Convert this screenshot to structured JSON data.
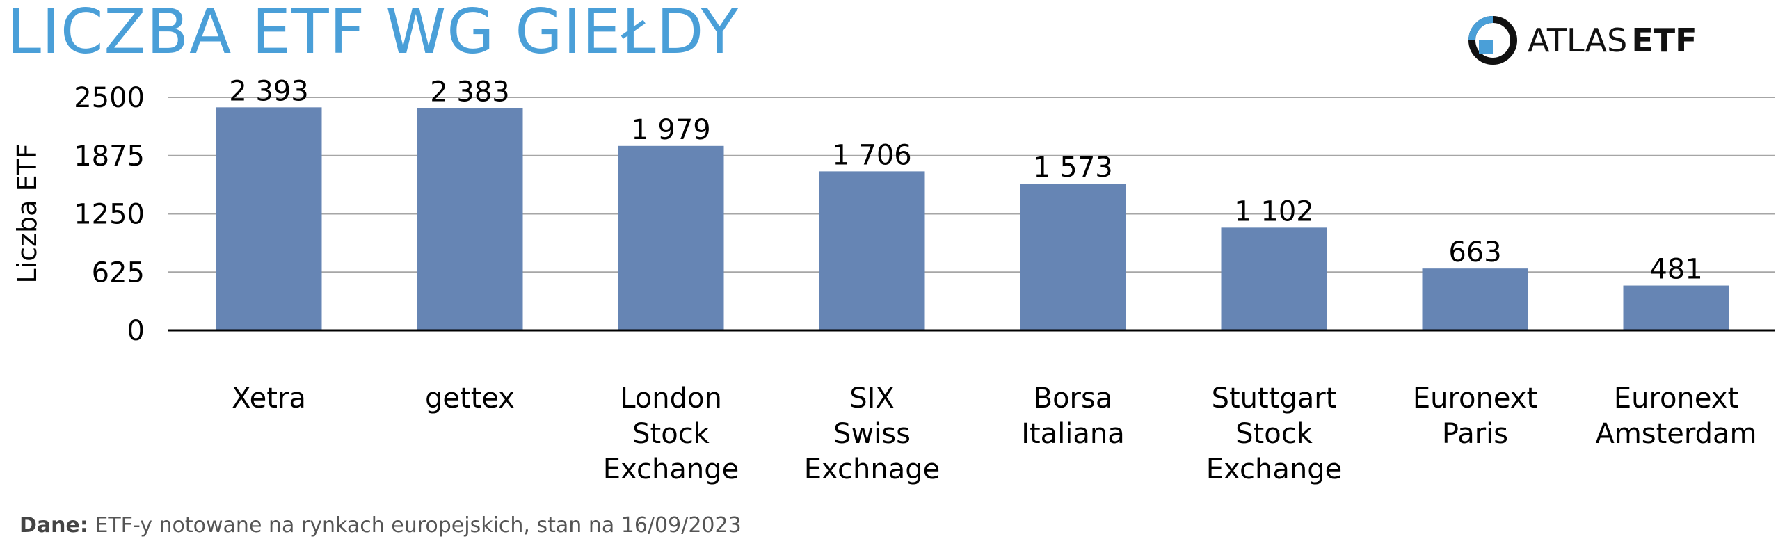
{
  "title": "LICZBA ETF WG GIEŁDY",
  "logo": {
    "word1": "ATLAS",
    "word2": "ETF",
    "icon": "atlas-etf-logo-icon",
    "colors": {
      "ring": "#4a9fd8",
      "text": "#111111"
    }
  },
  "source": {
    "label": "Dane:",
    "text": "ETF-y notowane na rynkach europejskich, stan na 16/09/2023"
  },
  "colors": {
    "title": "#4a9fd8",
    "bar": "#6685b4",
    "grid": "#a6a6a6",
    "axis": "#000000"
  },
  "chart_data": {
    "type": "bar",
    "title": "",
    "xlabel": "",
    "ylabel": "Liczba ETF",
    "ylim": [
      0,
      2500
    ],
    "yticks": [
      {
        "value": 0,
        "label": "0"
      },
      {
        "value": 625,
        "label": "625"
      },
      {
        "value": 1250,
        "label": "1250"
      },
      {
        "value": 1875,
        "label": "1875"
      },
      {
        "value": 2500,
        "label": "2500"
      }
    ],
    "grid": true,
    "legend": "none",
    "categories": [
      [
        "Xetra"
      ],
      [
        "gettex"
      ],
      [
        "London",
        "Stock",
        "Exchange"
      ],
      [
        "SIX",
        "Swiss",
        "Exchnage"
      ],
      [
        "Borsa",
        "Italiana"
      ],
      [
        "Stuttgart",
        "Stock",
        "Exchange"
      ],
      [
        "Euronext",
        "Paris"
      ],
      [
        "Euronext",
        "Amsterdam"
      ]
    ],
    "values": [
      2393,
      2383,
      1979,
      1706,
      1573,
      1102,
      663,
      481
    ],
    "data_labels": [
      "2 393",
      "2 383",
      "1 979",
      "1 706",
      "1 573",
      "1 102",
      "663",
      "481"
    ]
  }
}
